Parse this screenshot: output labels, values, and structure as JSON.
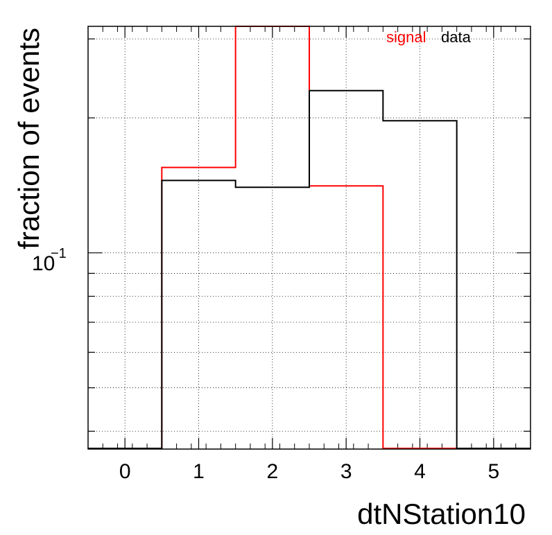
{
  "chart_data": {
    "type": "histogram",
    "xlabel": "dtNStation10",
    "ylabel": "fraction of events",
    "x_bin_edges": [
      -0.5,
      0.5,
      1.5,
      2.5,
      3.5,
      4.5,
      5.5
    ],
    "x_ticks": [
      "0",
      "1",
      "2",
      "3",
      "4",
      "5"
    ],
    "xlim": [
      -0.5,
      5.5
    ],
    "y_scale": "log",
    "ylim": [
      0.0365,
      0.32
    ],
    "y_tick_label": {
      "base": "10",
      "exponent": "−1",
      "value": 0.1
    },
    "grid": true,
    "legend_position": "top-right",
    "series": [
      {
        "name": "signal",
        "color": "#ff0000",
        "values": [
          0.0,
          0.155,
          0.32,
          0.141,
          0.0,
          0.0
        ]
      },
      {
        "name": "data",
        "color": "#000000",
        "values": [
          0.0,
          0.145,
          0.14,
          0.23,
          0.197,
          0.0
        ]
      }
    ]
  }
}
